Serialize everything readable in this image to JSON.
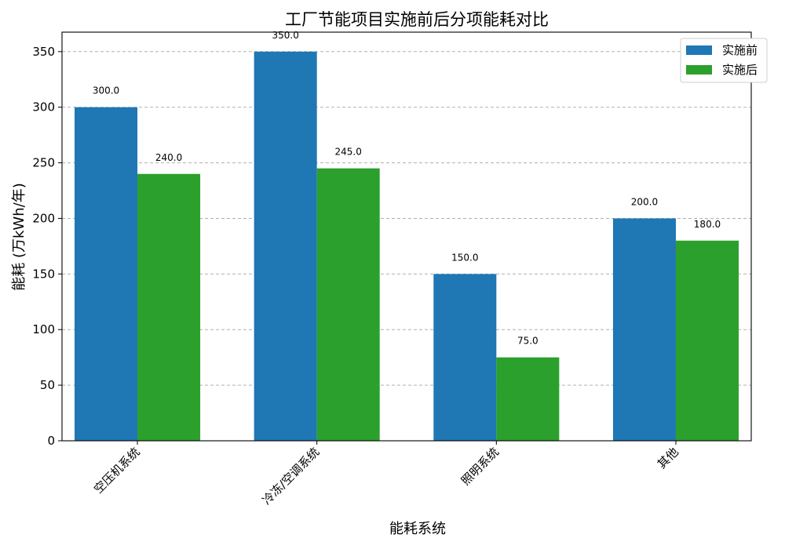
{
  "chart_data": {
    "type": "bar",
    "title": "工厂节能项目实施前后分项能耗对比",
    "xlabel": "能耗系统",
    "ylabel": "能耗 (万kWh/年)",
    "categories": [
      "空压机系统",
      "冷冻/空调系统",
      "照明系统",
      "其他"
    ],
    "series": [
      {
        "name": "实施前",
        "values": [
          300.0,
          350.0,
          150.0,
          200.0
        ],
        "color": "#1f77b4"
      },
      {
        "name": "实施后",
        "values": [
          240.0,
          245.0,
          75.0,
          180.0
        ],
        "color": "#2ca02c"
      }
    ],
    "ylim": [
      0,
      367.5
    ],
    "yticks": [
      0,
      50,
      100,
      150,
      200,
      250,
      300,
      350
    ],
    "grid": true,
    "legend_position": "top-right",
    "data_label_format": "one-decimal"
  }
}
